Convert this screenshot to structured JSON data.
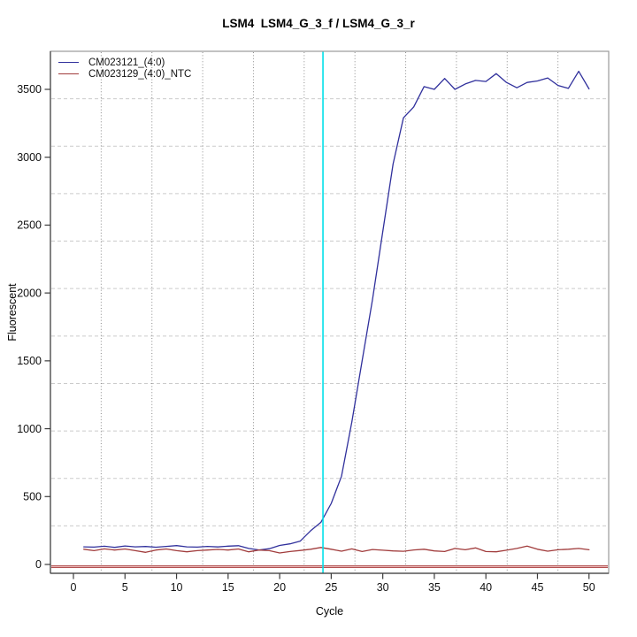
{
  "chart_data": {
    "type": "line",
    "title": "LSM4  LSM4_G_3_f / LSM4_G_3_r",
    "xlabel": "Cycle",
    "ylabel": "Fluorescent",
    "x_ticks": [
      0,
      5,
      10,
      15,
      20,
      25,
      30,
      35,
      40,
      45,
      50
    ],
    "y_ticks": [
      0,
      500,
      1000,
      1500,
      2000,
      2500,
      3000,
      3500
    ],
    "xlim": [
      -2.2,
      51.9
    ],
    "ylim": [
      -65,
      3780
    ],
    "grid": {
      "on": true,
      "cells": 11,
      "vertical_style": "dotted",
      "vertical_color": "#8c8c8c",
      "horizontal_style": "dashed",
      "horizontal_color": "#cbcbcb"
    },
    "threshold_cycle_line": {
      "x": 24.2,
      "color": "#00dfe9"
    },
    "zero_line": {
      "y": 0,
      "color_outer": "#b25252",
      "color_inner": "#eab6b6"
    },
    "legend_position": "top-left",
    "x": [
      1,
      2,
      3,
      4,
      5,
      6,
      7,
      8,
      9,
      10,
      11,
      12,
      13,
      14,
      15,
      16,
      17,
      18,
      19,
      20,
      21,
      22,
      23,
      24,
      25,
      26,
      27,
      28,
      29,
      30,
      31,
      32,
      33,
      34,
      35,
      36,
      37,
      38,
      39,
      40,
      41,
      42,
      43,
      44,
      45,
      46,
      47,
      48,
      49,
      50
    ],
    "series": [
      {
        "name": "CM023121_(4:0)",
        "color": "#30309c",
        "values": [
          130,
          128,
          134,
          126,
          136,
          130,
          132,
          127,
          133,
          139,
          130,
          128,
          133,
          129,
          135,
          138,
          118,
          107,
          116,
          140,
          152,
          172,
          248,
          310,
          450,
          650,
          1050,
          1500,
          1950,
          2450,
          2950,
          3290,
          3370,
          3520,
          3500,
          3580,
          3500,
          3540,
          3566,
          3558,
          3616,
          3551,
          3512,
          3551,
          3562,
          3584,
          3529,
          3507,
          3633,
          3503
        ]
      },
      {
        "name": "CM023129_(4:0)_NTC",
        "color": "#a13c3c",
        "values": [
          112,
          102,
          115,
          106,
          114,
          102,
          89,
          106,
          114,
          102,
          93,
          102,
          106,
          111,
          106,
          114,
          93,
          106,
          102,
          85,
          95,
          103,
          112,
          125,
          112,
          98,
          115,
          95,
          110,
          105,
          100,
          97,
          107,
          112,
          100,
          95,
          118,
          108,
          122,
          95,
          93,
          105,
          118,
          135,
          112,
          98,
          108,
          112,
          118,
          108
        ]
      }
    ],
    "axis_colors": {
      "box": "#9a9a9a",
      "axis": "#3c3c3c",
      "tick_label": "#111111"
    }
  }
}
